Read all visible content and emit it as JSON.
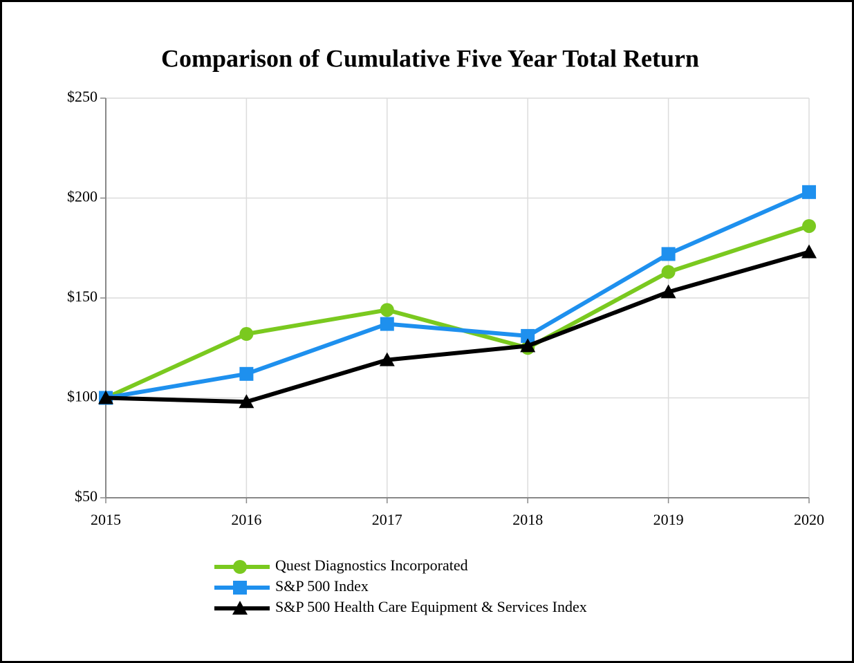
{
  "chart_data": {
    "type": "line",
    "title": "Comparison of Cumulative Five Year Total Return",
    "x": [
      2015,
      2016,
      2017,
      2018,
      2019,
      2020
    ],
    "xlim": [
      2015,
      2020
    ],
    "xticks": [
      2015,
      2016,
      2017,
      2018,
      2019,
      2020
    ],
    "ylim": [
      50,
      250
    ],
    "yticks": [
      {
        "value": 50,
        "label": "$50"
      },
      {
        "value": 100,
        "label": "$100"
      },
      {
        "value": 150,
        "label": "$150"
      },
      {
        "value": 200,
        "label": "$200"
      },
      {
        "value": 250,
        "label": "$250"
      }
    ],
    "grid": true,
    "legend": "bottom",
    "series": [
      {
        "name": "Quest Diagnostics Incorporated",
        "color": "#7ac91f",
        "marker": "circle",
        "values": [
          100,
          132,
          144,
          125,
          163,
          186
        ]
      },
      {
        "name": "S&P 500 Index",
        "color": "#1e90ee",
        "marker": "square",
        "values": [
          100,
          112,
          137,
          131,
          172,
          203
        ]
      },
      {
        "name": "S&P 500 Health Care Equipment & Services Index",
        "color": "#000000",
        "marker": "triangle",
        "values": [
          100,
          98,
          119,
          126,
          153,
          173
        ]
      }
    ]
  }
}
